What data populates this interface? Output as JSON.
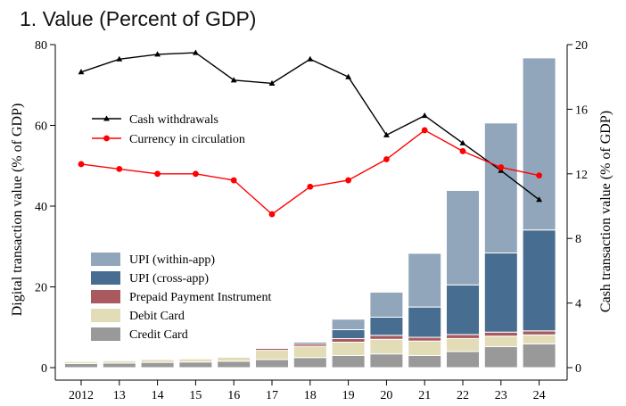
{
  "title": "1. Value (Percent of GDP)",
  "chart_data": {
    "type": "bar",
    "categories": [
      "2012",
      "13",
      "14",
      "15",
      "16",
      "17",
      "18",
      "19",
      "20",
      "21",
      "22",
      "23",
      "24"
    ],
    "ylabel": "Digital transaction value (% of GDP)",
    "ylim": [
      0,
      80
    ],
    "yticks": [
      0,
      20,
      40,
      60,
      80
    ],
    "y2label": "Cash transaction value (% of GDP)",
    "y2lim": [
      0,
      20
    ],
    "y2ticks": [
      0,
      4,
      8,
      12,
      16,
      20
    ],
    "stack_series": [
      {
        "name": "Credit Card",
        "color": "#999999",
        "values": [
          1.0,
          1.1,
          1.3,
          1.4,
          1.6,
          2.0,
          2.5,
          3.0,
          3.4,
          3.0,
          4.0,
          5.2,
          5.9
        ]
      },
      {
        "name": "Debit Card",
        "color": "#e2ddb6",
        "values": [
          0.5,
          0.6,
          0.7,
          0.8,
          1.0,
          2.3,
          2.8,
          3.3,
          3.6,
          3.6,
          3.2,
          2.6,
          2.2
        ]
      },
      {
        "name": "Prepaid Payment Instrument",
        "color": "#a85a5e",
        "values": [
          0.0,
          0.0,
          0.0,
          0.1,
          0.2,
          0.5,
          0.6,
          0.9,
          1.0,
          0.9,
          1.0,
          1.0,
          1.0
        ]
      },
      {
        "name": "UPI (cross-app)",
        "color": "#476d91",
        "values": [
          0.0,
          0.0,
          0.0,
          0.0,
          0.0,
          0.1,
          0.4,
          2.2,
          4.5,
          7.5,
          12.3,
          19.6,
          25.0
        ]
      },
      {
        "name": "UPI (within-app)",
        "color": "#91a6bb",
        "values": [
          0.0,
          0.0,
          0.0,
          0.0,
          0.0,
          0.1,
          0.2,
          2.6,
          6.2,
          13.3,
          23.4,
          32.2,
          42.6
        ]
      }
    ],
    "line_series": [
      {
        "name": "Cash withdrawals",
        "color": "#000000",
        "marker": "triangle",
        "axis": "right",
        "values": [
          18.3,
          19.1,
          19.4,
          19.5,
          17.8,
          17.6,
          19.1,
          18.0,
          14.4,
          15.6,
          13.9,
          12.2,
          10.4
        ]
      },
      {
        "name": "Currency in circulation",
        "color": "#ff0000",
        "marker": "circle",
        "axis": "right",
        "values": [
          12.6,
          12.3,
          12.0,
          12.0,
          11.6,
          9.5,
          11.2,
          11.6,
          12.9,
          14.7,
          13.4,
          12.4,
          11.9
        ]
      }
    ],
    "legend_lines_position": "top-left",
    "legend_bars_position": "bottom-left",
    "legend_bars_order": [
      "UPI (within-app)",
      "UPI (cross-app)",
      "Prepaid Payment Instrument",
      "Debit Card",
      "Credit Card"
    ],
    "legend_lines_order": [
      "Cash withdrawals",
      "Currency in circulation"
    ]
  }
}
